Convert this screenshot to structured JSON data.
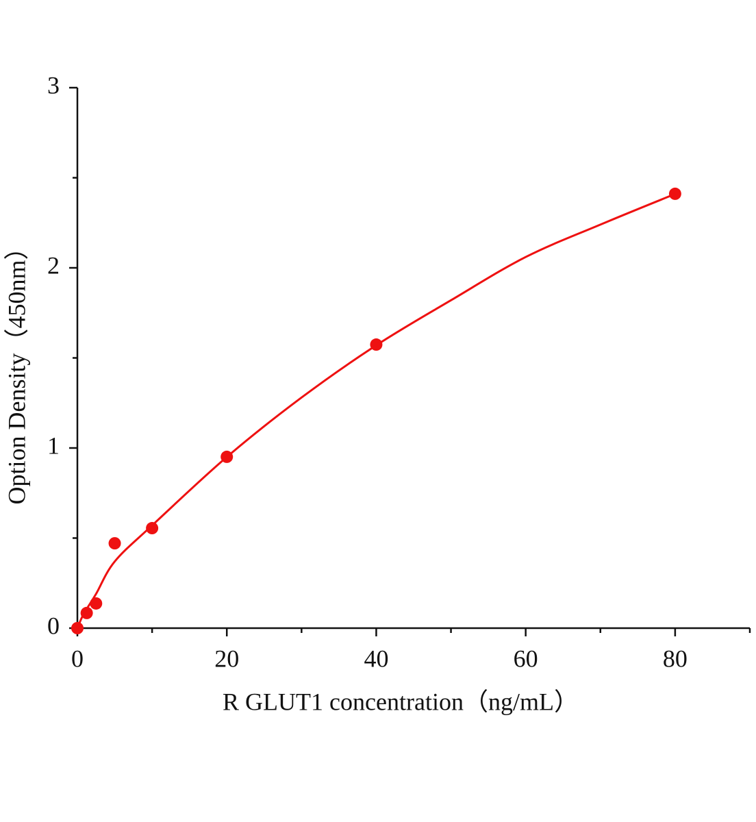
{
  "chart_data": {
    "type": "scatter",
    "x_label": "R GLUT1  concentration（ng/mL）",
    "y_label": "Option Density（450nm）",
    "series": [
      {
        "color": "#ee1111",
        "mode": "markers",
        "x": [
          0,
          1.25,
          2.5,
          5,
          10,
          20,
          40,
          80
        ],
        "values": [
          0,
          0.084,
          0.137,
          0.471,
          0.555,
          0.951,
          1.574,
          2.411
        ]
      },
      {
        "color": "#ee1111",
        "mode": "line",
        "x": [
          0,
          0.5,
          1,
          2.5,
          5,
          10,
          20,
          30,
          40,
          50,
          60,
          70,
          80
        ],
        "values": [
          0,
          0.05,
          0.09,
          0.19,
          0.37,
          0.57,
          0.95,
          1.28,
          1.57,
          1.82,
          2.06,
          2.24,
          2.41
        ]
      }
    ],
    "xlim": [
      0,
      90
    ],
    "xticks": [
      0,
      20,
      40,
      60,
      80
    ],
    "xminorticks": [
      10,
      30,
      50,
      70,
      90
    ],
    "ylim": [
      0,
      3
    ],
    "yticks": [
      0,
      1,
      2,
      3
    ],
    "yminorticks": [
      0.5,
      1.5,
      2.5
    ]
  }
}
